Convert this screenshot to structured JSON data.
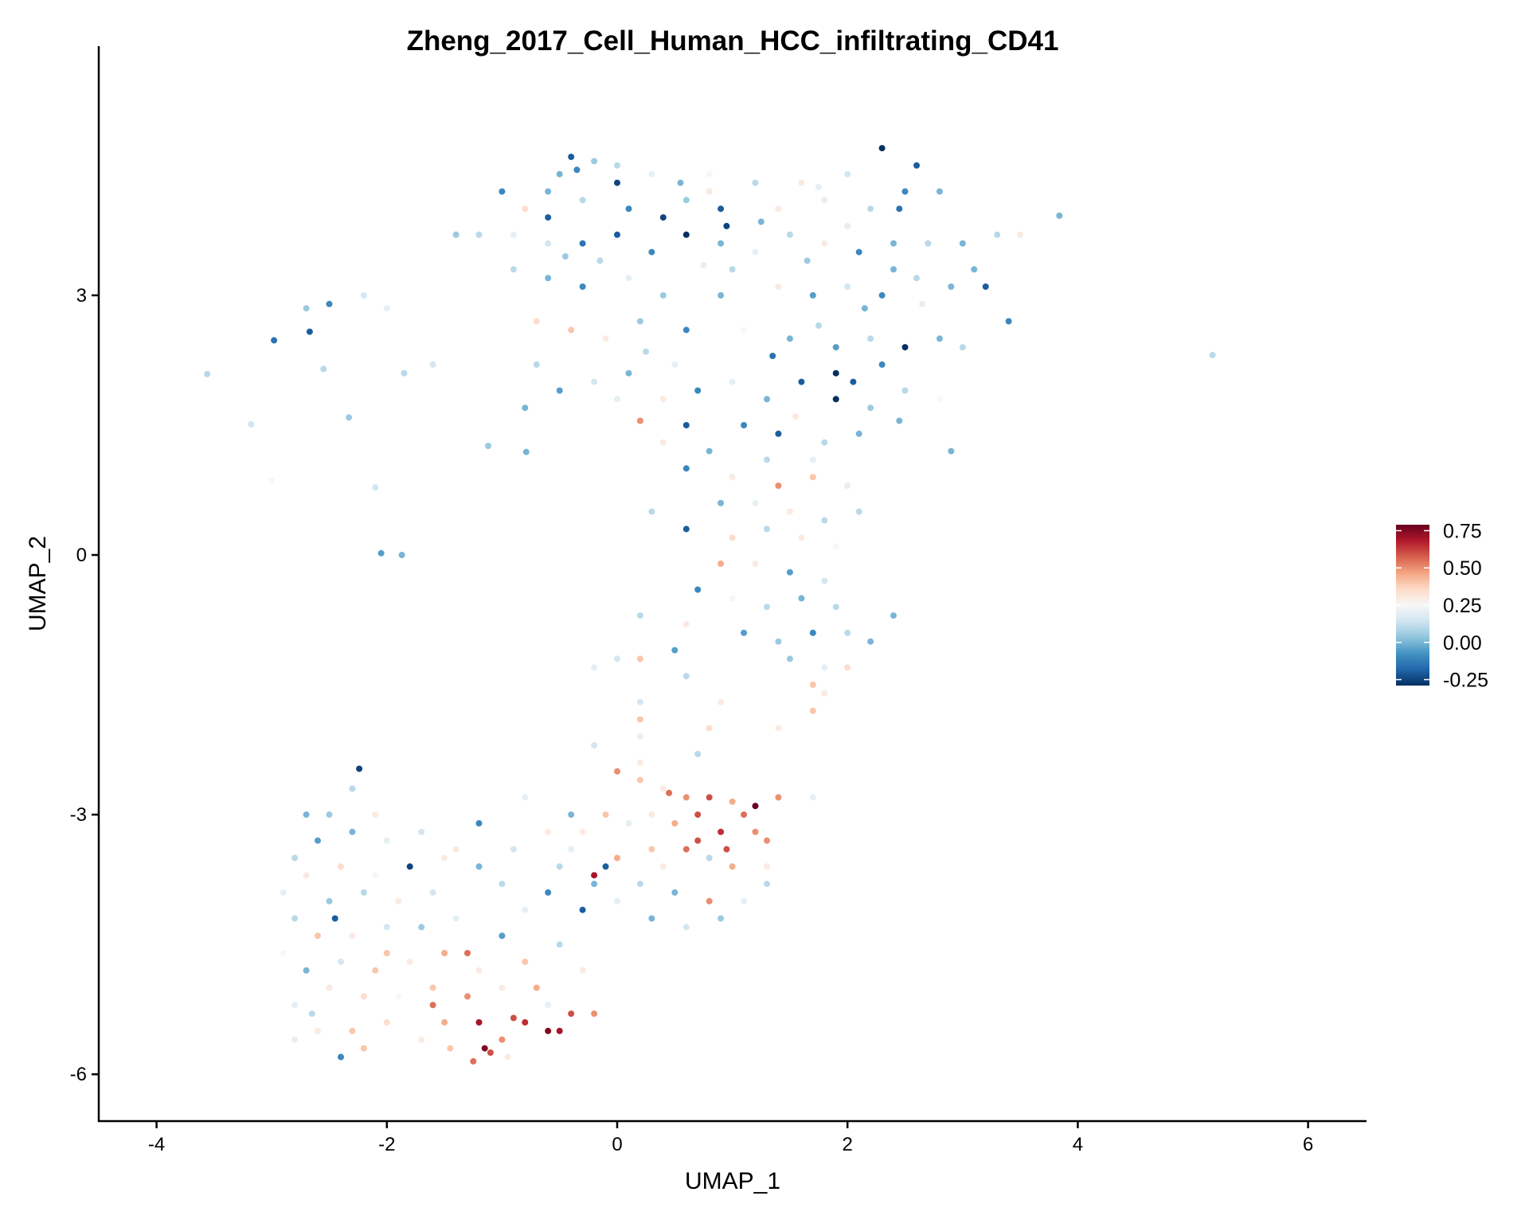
{
  "chart_data": {
    "type": "scatter",
    "title": "Zheng_2017_Cell_Human_HCC_infiltrating_CD41",
    "xlabel": "UMAP_1",
    "ylabel": "UMAP_2",
    "xlim": [
      -4.5,
      6.5
    ],
    "ylim": [
      -6.6,
      5.85
    ],
    "xticks": [
      -4,
      -2,
      0,
      2,
      4,
      6
    ],
    "xtick_labels": [
      "-4",
      "-2",
      "0",
      "2",
      "4",
      "6"
    ],
    "yticks": [
      -6,
      -3,
      0,
      3
    ],
    "ytick_labels": [
      "-6",
      "-3",
      "0",
      "3"
    ],
    "grid": false,
    "legend": {
      "placement": "right",
      "range": [
        -0.29,
        0.79
      ],
      "ticks": [
        0.75,
        0.5,
        0.25,
        0,
        -0.25
      ],
      "tick_labels": [
        "0.75",
        "0.50",
        "0.25",
        "0.00",
        "-0.25"
      ],
      "colors": [
        "#053061",
        "#2166ac",
        "#4393c3",
        "#92c5de",
        "#d1e5f0",
        "#f7f7f7",
        "#fddbc7",
        "#f4a582",
        "#d6604d",
        "#b2182b",
        "#67001f"
      ]
    },
    "points_format": [
      "umap_1",
      "umap_2",
      "score"
    ],
    "points": [
      [
        -3.56,
        2.09,
        0.1
      ],
      [
        5.17,
        2.31,
        0.1
      ],
      [
        3.84,
        3.92,
        0.0
      ],
      [
        -2.05,
        0.02,
        -0.05
      ],
      [
        -1.87,
        0.0,
        0.0
      ],
      [
        -3.18,
        1.51,
        0.15
      ],
      [
        -2.98,
        2.48,
        -0.15
      ],
      [
        -2.67,
        2.58,
        -0.2
      ],
      [
        -3.0,
        0.86,
        0.25
      ],
      [
        -2.33,
        1.59,
        0.05
      ],
      [
        -2.1,
        0.78,
        0.15
      ],
      [
        -1.12,
        1.26,
        0.05
      ],
      [
        -0.79,
        1.19,
        0.0
      ],
      [
        -2.24,
        -2.47,
        -0.25
      ],
      [
        -2.7,
        2.85,
        0.05
      ],
      [
        -2.5,
        2.9,
        -0.1
      ],
      [
        -2.2,
        3.0,
        0.15
      ],
      [
        -2.0,
        2.85,
        0.2
      ],
      [
        -1.6,
        2.2,
        0.15
      ],
      [
        -1.85,
        2.1,
        0.1
      ],
      [
        -2.55,
        2.15,
        0.1
      ],
      [
        -0.4,
        4.6,
        -0.2
      ],
      [
        -0.2,
        4.55,
        0.05
      ],
      [
        0,
        4.5,
        0.1
      ],
      [
        0.3,
        4.4,
        0.2
      ],
      [
        0.8,
        4.4,
        0.25
      ],
      [
        1.2,
        4.3,
        0.1
      ],
      [
        1.6,
        4.3,
        0.3
      ],
      [
        2.0,
        4.4,
        0.15
      ],
      [
        2.3,
        4.7,
        -0.3
      ],
      [
        2.6,
        4.5,
        -0.2
      ],
      [
        2.8,
        4.2,
        0.0
      ],
      [
        -1.0,
        4.2,
        -0.1
      ],
      [
        -0.8,
        4.0,
        0.35
      ],
      [
        -0.6,
        4.2,
        0.0
      ],
      [
        -0.3,
        4.1,
        0.1
      ],
      [
        0.1,
        4.0,
        -0.1
      ],
      [
        0.4,
        3.9,
        -0.25
      ],
      [
        0.6,
        4.1,
        0.05
      ],
      [
        0.9,
        4.0,
        -0.2
      ],
      [
        1.4,
        4.0,
        0.3
      ],
      [
        1.8,
        4.1,
        0.2
      ],
      [
        2.2,
        4.0,
        0.1
      ],
      [
        2.5,
        4.2,
        -0.1
      ],
      [
        -1.4,
        3.7,
        0.05
      ],
      [
        -1.2,
        3.7,
        0.1
      ],
      [
        -0.9,
        3.7,
        0.2
      ],
      [
        -0.6,
        3.6,
        0.15
      ],
      [
        -0.3,
        3.6,
        -0.15
      ],
      [
        0,
        3.7,
        -0.2
      ],
      [
        0.3,
        3.5,
        -0.1
      ],
      [
        0.6,
        3.7,
        -0.3
      ],
      [
        0.9,
        3.6,
        0.0
      ],
      [
        1.2,
        3.5,
        0.2
      ],
      [
        1.5,
        3.7,
        0.1
      ],
      [
        1.8,
        3.6,
        0.3
      ],
      [
        2.1,
        3.5,
        -0.1
      ],
      [
        2.4,
        3.6,
        0.0
      ],
      [
        2.7,
        3.6,
        0.1
      ],
      [
        3.0,
        3.6,
        0.0
      ],
      [
        3.3,
        3.7,
        0.1
      ],
      [
        3.5,
        3.7,
        0.3
      ],
      [
        -0.9,
        3.3,
        0.1
      ],
      [
        -0.6,
        3.2,
        0.0
      ],
      [
        -0.3,
        3.1,
        -0.1
      ],
      [
        0.1,
        3.2,
        0.2
      ],
      [
        0.4,
        3.0,
        0.05
      ],
      [
        0.9,
        3.0,
        0.0
      ],
      [
        1.4,
        3.1,
        0.3
      ],
      [
        1.7,
        3.0,
        -0.05
      ],
      [
        2.0,
        3.1,
        0.15
      ],
      [
        2.3,
        3.0,
        -0.1
      ],
      [
        2.6,
        3.2,
        0.1
      ],
      [
        2.9,
        3.1,
        0.0
      ],
      [
        3.2,
        3.1,
        -0.2
      ],
      [
        3.4,
        2.7,
        -0.1
      ],
      [
        -0.7,
        2.7,
        0.35
      ],
      [
        -0.4,
        2.6,
        0.4
      ],
      [
        -0.1,
        2.5,
        0.3
      ],
      [
        0.2,
        2.7,
        0.05
      ],
      [
        0.6,
        2.6,
        -0.1
      ],
      [
        1.1,
        2.6,
        0.25
      ],
      [
        1.5,
        2.5,
        0.0
      ],
      [
        1.9,
        2.4,
        -0.05
      ],
      [
        2.2,
        2.5,
        0.1
      ],
      [
        2.5,
        2.4,
        -0.3
      ],
      [
        2.8,
        2.5,
        0.0
      ],
      [
        3.0,
        2.4,
        0.1
      ],
      [
        -0.7,
        2.2,
        0.1
      ],
      [
        -0.5,
        1.9,
        -0.05
      ],
      [
        -0.2,
        2.0,
        0.15
      ],
      [
        0.1,
        2.1,
        0.0
      ],
      [
        0.4,
        1.8,
        0.3
      ],
      [
        0.7,
        1.9,
        -0.1
      ],
      [
        1.0,
        2.0,
        0.2
      ],
      [
        1.3,
        1.8,
        0.0
      ],
      [
        1.6,
        2.0,
        -0.2
      ],
      [
        1.9,
        1.8,
        -0.3
      ],
      [
        2.2,
        1.7,
        0.05
      ],
      [
        2.5,
        1.9,
        0.1
      ],
      [
        2.8,
        1.8,
        0.25
      ],
      [
        -0.8,
        1.7,
        0.0
      ],
      [
        0.2,
        1.55,
        0.5
      ],
      [
        0.6,
        1.5,
        -0.2
      ],
      [
        1.1,
        1.5,
        -0.1
      ],
      [
        1.4,
        1.4,
        -0.2
      ],
      [
        1.8,
        1.3,
        0.1
      ],
      [
        2.1,
        1.4,
        0.0
      ],
      [
        2.9,
        1.2,
        0.0
      ],
      [
        0.4,
        1.3,
        0.3
      ],
      [
        0.8,
        1.2,
        0.0
      ],
      [
        1.3,
        1.1,
        0.1
      ],
      [
        1.7,
        1.1,
        0.2
      ],
      [
        0.8,
        4.2,
        0.3
      ],
      [
        -0.5,
        4.4,
        0.0
      ],
      [
        1.0,
        3.3,
        0.1
      ],
      [
        1.9,
        2.1,
        -0.3
      ],
      [
        2.3,
        2.2,
        -0.1
      ],
      [
        0.5,
        2.2,
        0.2
      ],
      [
        0.0,
        4.3,
        -0.25
      ],
      [
        -0.6,
        3.9,
        -0.2
      ],
      [
        2.0,
        3.8,
        0.2
      ],
      [
        2.4,
        3.3,
        0.0
      ],
      [
        -0.35,
        4.45,
        -0.1
      ],
      [
        0.55,
        4.3,
        0.0
      ],
      [
        1.75,
        4.25,
        0.2
      ],
      [
        2.45,
        4.0,
        -0.15
      ],
      [
        3.1,
        3.3,
        0.0
      ],
      [
        -0.15,
        3.4,
        0.1
      ],
      [
        0.75,
        3.35,
        0.2
      ],
      [
        1.25,
        3.85,
        0.0
      ],
      [
        1.65,
        3.4,
        0.05
      ],
      [
        2.15,
        2.85,
        0.0
      ],
      [
        2.65,
        2.9,
        0.2
      ],
      [
        0.25,
        2.35,
        0.1
      ],
      [
        1.35,
        2.3,
        -0.15
      ],
      [
        1.75,
        2.65,
        0.1
      ],
      [
        2.05,
        2.0,
        -0.2
      ],
      [
        0.0,
        1.8,
        0.2
      ],
      [
        1.55,
        1.6,
        0.3
      ],
      [
        2.45,
        1.55,
        0.0
      ],
      [
        -0.45,
        3.45,
        0.05
      ],
      [
        0.95,
        3.8,
        -0.25
      ],
      [
        0.6,
        1.0,
        -0.1
      ],
      [
        1.0,
        0.9,
        0.3
      ],
      [
        1.4,
        0.8,
        0.5
      ],
      [
        1.7,
        0.9,
        0.4
      ],
      [
        2.0,
        0.8,
        0.2
      ],
      [
        2.1,
        0.5,
        0.1
      ],
      [
        0.9,
        0.6,
        0.0
      ],
      [
        1.2,
        0.6,
        0.2
      ],
      [
        1.5,
        0.5,
        0.3
      ],
      [
        1.8,
        0.4,
        0.1
      ],
      [
        0.3,
        0.5,
        0.1
      ],
      [
        0.6,
        0.3,
        -0.2
      ],
      [
        1.0,
        0.2,
        0.35
      ],
      [
        1.3,
        0.3,
        0.1
      ],
      [
        1.6,
        0.2,
        0.3
      ],
      [
        1.9,
        0.1,
        0.25
      ],
      [
        0.9,
        -0.1,
        0.45
      ],
      [
        1.2,
        -0.1,
        0.3
      ],
      [
        1.5,
        -0.2,
        -0.05
      ],
      [
        1.8,
        -0.3,
        0.15
      ],
      [
        0.7,
        -0.4,
        -0.1
      ],
      [
        1.0,
        -0.5,
        0.25
      ],
      [
        1.3,
        -0.6,
        0.1
      ],
      [
        1.6,
        -0.5,
        0.0
      ],
      [
        1.9,
        -0.6,
        0.1
      ],
      [
        2.4,
        -0.7,
        0.0
      ],
      [
        0.6,
        -0.8,
        0.3
      ],
      [
        1.1,
        -0.9,
        -0.05
      ],
      [
        1.4,
        -1.0,
        0.05
      ],
      [
        1.7,
        -0.9,
        -0.1
      ],
      [
        2.0,
        -0.9,
        0.1
      ],
      [
        2.2,
        -1.0,
        0.0
      ],
      [
        1.5,
        -1.2,
        0.05
      ],
      [
        1.8,
        -1.3,
        0.2
      ],
      [
        2.0,
        -1.3,
        0.35
      ],
      [
        1.8,
        -1.6,
        0.3
      ],
      [
        1.7,
        -1.5,
        0.4
      ],
      [
        0.5,
        -1.1,
        -0.05
      ],
      [
        0.2,
        -1.2,
        0.4
      ],
      [
        0,
        -1.2,
        0.15
      ],
      [
        -0.2,
        -1.3,
        0.2
      ],
      [
        0.2,
        -1.7,
        0.15
      ],
      [
        0.2,
        -1.9,
        0.4
      ],
      [
        0.9,
        -1.7,
        0.3
      ],
      [
        1.4,
        -2.0,
        0.3
      ],
      [
        0.8,
        -2.0,
        0.35
      ],
      [
        0.2,
        -2.1,
        0.2
      ],
      [
        1.7,
        -1.8,
        0.4
      ],
      [
        0.7,
        -2.3,
        0.1
      ],
      [
        0.2,
        -2.4,
        0.3
      ],
      [
        -0.2,
        -2.2,
        0.15
      ],
      [
        1.7,
        -2.8,
        0.2
      ],
      [
        0.2,
        -0.7,
        0.1
      ],
      [
        0.6,
        -1.4,
        0.1
      ],
      [
        0.0,
        -2.5,
        0.5
      ],
      [
        0.2,
        -2.6,
        0.4
      ],
      [
        0.4,
        -2.7,
        0.3
      ],
      [
        0.6,
        -2.8,
        0.5
      ],
      [
        0.8,
        -2.8,
        0.6
      ],
      [
        1.0,
        -2.85,
        0.45
      ],
      [
        1.2,
        -2.9,
        0.79
      ],
      [
        1.4,
        -2.8,
        0.5
      ],
      [
        1.1,
        -3.0,
        0.55
      ],
      [
        0.7,
        -3.0,
        0.6
      ],
      [
        0.5,
        -3.1,
        0.45
      ],
      [
        0.3,
        -3.0,
        0.3
      ],
      [
        0.1,
        -3.1,
        0.2
      ],
      [
        -0.1,
        -3.0,
        0.4
      ],
      [
        -0.3,
        -3.2,
        0.3
      ],
      [
        0.9,
        -3.2,
        0.65
      ],
      [
        1.3,
        -3.3,
        0.5
      ],
      [
        0.6,
        -3.4,
        0.55
      ],
      [
        0.3,
        -3.4,
        0.4
      ],
      [
        0.0,
        -3.5,
        0.45
      ],
      [
        -0.4,
        -3.4,
        0.2
      ],
      [
        1.0,
        -3.6,
        0.45
      ],
      [
        1.3,
        -3.6,
        0.3
      ],
      [
        0.8,
        -3.5,
        0.1
      ],
      [
        0.2,
        -3.8,
        0.1
      ],
      [
        0.5,
        -3.9,
        0.0
      ],
      [
        0.8,
        -4.0,
        0.5
      ],
      [
        1.1,
        -4.0,
        0.2
      ],
      [
        1.3,
        -3.8,
        0.1
      ],
      [
        -0.2,
        -3.8,
        0.0
      ],
      [
        -0.5,
        -3.6,
        0.1
      ],
      [
        -0.6,
        -3.9,
        -0.1
      ],
      [
        -0.3,
        -4.1,
        -0.2
      ],
      [
        0.0,
        -4.0,
        0.2
      ],
      [
        0.3,
        -4.2,
        0.0
      ],
      [
        0.6,
        -4.3,
        0.15
      ],
      [
        0.9,
        -4.2,
        0.05
      ],
      [
        -0.8,
        -4.1,
        0.2
      ],
      [
        -1.0,
        -3.8,
        0.1
      ],
      [
        -1.2,
        -3.6,
        0.0
      ],
      [
        -0.9,
        -3.4,
        0.15
      ],
      [
        -0.6,
        -3.2,
        0.3
      ],
      [
        -0.4,
        -3.0,
        0.0
      ],
      [
        -0.8,
        -2.8,
        0.2
      ],
      [
        -1.2,
        -3.1,
        -0.1
      ],
      [
        -1.4,
        -3.4,
        0.3
      ],
      [
        -0.1,
        -3.6,
        -0.2
      ],
      [
        0.7,
        -3.3,
        0.6
      ],
      [
        1.2,
        -3.2,
        0.5
      ],
      [
        0.4,
        -3.6,
        0.3
      ],
      [
        -0.2,
        -3.7,
        0.7
      ],
      [
        0.45,
        -2.75,
        0.55
      ],
      [
        0.95,
        -3.4,
        0.6
      ],
      [
        -1.7,
        -3.2,
        0.15
      ],
      [
        -2.0,
        -3.3,
        0.2
      ],
      [
        -2.3,
        -3.2,
        0.0
      ],
      [
        -2.6,
        -3.3,
        -0.05
      ],
      [
        -2.8,
        -3.5,
        0.1
      ],
      [
        -1.5,
        -3.5,
        0.3
      ],
      [
        -1.8,
        -3.6,
        -0.25
      ],
      [
        -2.1,
        -3.7,
        0.25
      ],
      [
        -2.4,
        -3.6,
        0.35
      ],
      [
        -2.7,
        -3.7,
        0.3
      ],
      [
        -2.9,
        -3.9,
        0.2
      ],
      [
        -1.6,
        -3.9,
        0.15
      ],
      [
        -1.9,
        -4.0,
        0.3
      ],
      [
        -2.2,
        -3.9,
        0.1
      ],
      [
        -2.5,
        -4.0,
        0.05
      ],
      [
        -2.8,
        -4.2,
        0.1
      ],
      [
        -1.4,
        -4.2,
        0.2
      ],
      [
        -1.7,
        -4.3,
        0.05
      ],
      [
        -2.0,
        -4.3,
        0.15
      ],
      [
        -2.3,
        -4.4,
        0.3
      ],
      [
        -2.6,
        -4.4,
        0.4
      ],
      [
        -2.9,
        -4.6,
        0.25
      ],
      [
        -1.5,
        -4.6,
        0.45
      ],
      [
        -1.8,
        -4.7,
        0.3
      ],
      [
        -2.1,
        -4.8,
        0.4
      ],
      [
        -2.4,
        -4.7,
        0.15
      ],
      [
        -2.7,
        -4.8,
        0.0
      ],
      [
        -1.2,
        -4.8,
        0.3
      ],
      [
        -1.6,
        -5.0,
        0.4
      ],
      [
        -1.9,
        -5.1,
        0.25
      ],
      [
        -2.2,
        -5.1,
        0.35
      ],
      [
        -2.5,
        -5.0,
        0.3
      ],
      [
        -2.8,
        -5.2,
        0.2
      ],
      [
        -1.3,
        -5.1,
        0.5
      ],
      [
        -1.0,
        -5.0,
        0.3
      ],
      [
        -0.7,
        -5.0,
        0.45
      ],
      [
        -2.3,
        -5.5,
        0.4
      ],
      [
        -2.6,
        -5.5,
        0.3
      ],
      [
        -2.8,
        -5.6,
        0.2
      ],
      [
        -2.0,
        -5.4,
        0.35
      ],
      [
        -2.4,
        -5.8,
        -0.1
      ],
      [
        -2.2,
        -5.7,
        0.4
      ],
      [
        -1.7,
        -5.6,
        0.3
      ],
      [
        -1.5,
        -5.4,
        0.45
      ],
      [
        -1.2,
        -5.4,
        0.7
      ],
      [
        -1.0,
        -5.6,
        0.5
      ],
      [
        -0.8,
        -5.4,
        0.65
      ],
      [
        -0.6,
        -5.5,
        0.75
      ],
      [
        -0.4,
        -5.3,
        0.6
      ],
      [
        -0.2,
        -5.3,
        0.5
      ],
      [
        -0.5,
        -5.5,
        0.7
      ],
      [
        -1.1,
        -5.75,
        0.6
      ],
      [
        -1.25,
        -5.85,
        0.55
      ],
      [
        -0.95,
        -5.8,
        0.3
      ],
      [
        -1.45,
        -5.7,
        0.4
      ],
      [
        -1.6,
        -5.2,
        0.55
      ],
      [
        -0.6,
        -5.2,
        0.2
      ],
      [
        -1.3,
        -4.6,
        0.55
      ],
      [
        -1.0,
        -4.4,
        -0.05
      ],
      [
        -0.8,
        -4.7,
        0.4
      ],
      [
        -0.5,
        -4.5,
        0.1
      ],
      [
        -0.3,
        -4.8,
        0.3
      ],
      [
        -2.5,
        -3.0,
        0.05
      ],
      [
        -2.3,
        -2.7,
        0.1
      ],
      [
        -2.1,
        -3.0,
        0.3
      ],
      [
        -2.7,
        -3.0,
        0.0
      ],
      [
        -2.45,
        -4.2,
        -0.2
      ],
      [
        -2.65,
        -5.3,
        0.1
      ],
      [
        -2.0,
        -4.6,
        0.4
      ],
      [
        -1.15,
        -5.7,
        0.75
      ],
      [
        -0.9,
        -5.35,
        0.6
      ]
    ]
  }
}
